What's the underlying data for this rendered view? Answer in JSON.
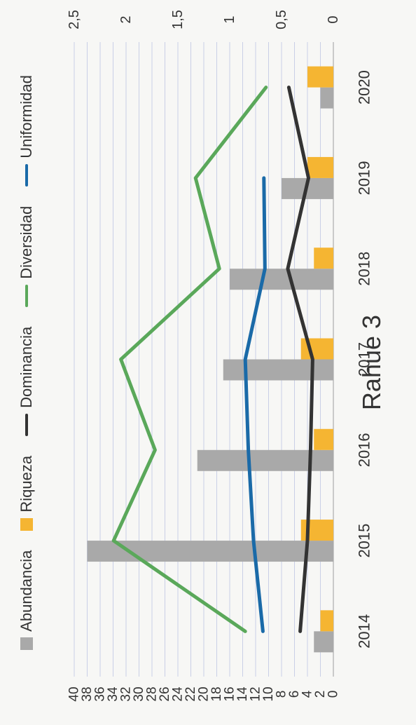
{
  "chart_data": {
    "type": "bar",
    "title": "Rahue 3",
    "categories": [
      "2014",
      "2015",
      "2016",
      "2017",
      "2018",
      "2019",
      "2020"
    ],
    "left_axis": {
      "ticks": [
        "0",
        "2",
        "4",
        "6",
        "8",
        "10",
        "12",
        "14",
        "16",
        "18",
        "20",
        "22",
        "24",
        "26",
        "28",
        "30",
        "32",
        "34",
        "36",
        "38",
        "40"
      ],
      "ylim": [
        0,
        40
      ]
    },
    "right_axis": {
      "ticks": [
        "0",
        "0,5",
        "1",
        "1,5",
        "2",
        "2,5"
      ],
      "ylim": [
        0,
        2.5
      ]
    },
    "series": [
      {
        "name": "Abundancia",
        "kind": "bar",
        "axis": "left",
        "color": "#a9a9a9",
        "values": [
          3,
          38,
          21,
          17,
          16,
          8,
          2
        ]
      },
      {
        "name": "Riqueza",
        "kind": "bar",
        "axis": "left",
        "color": "#f5b532",
        "values": [
          2,
          5,
          3,
          5,
          3,
          4,
          4
        ]
      },
      {
        "name": "Dominancia",
        "kind": "line",
        "axis": "right",
        "color": "#333333",
        "values": [
          0.32,
          0.25,
          0.22,
          0.2,
          0.44,
          0.24,
          0.43
        ]
      },
      {
        "name": "Diversidad",
        "kind": "line",
        "axis": "right",
        "color": "#5aa85a",
        "values": [
          0.85,
          2.12,
          1.72,
          2.05,
          1.1,
          1.33,
          0.65
        ]
      },
      {
        "name": "Uniformidad",
        "kind": "line",
        "axis": "right",
        "color": "#1a6aa8",
        "values": [
          0.68,
          0.77,
          0.82,
          0.85,
          0.66,
          0.67,
          null
        ]
      }
    ],
    "legend_position": "bottom",
    "grid": true
  }
}
